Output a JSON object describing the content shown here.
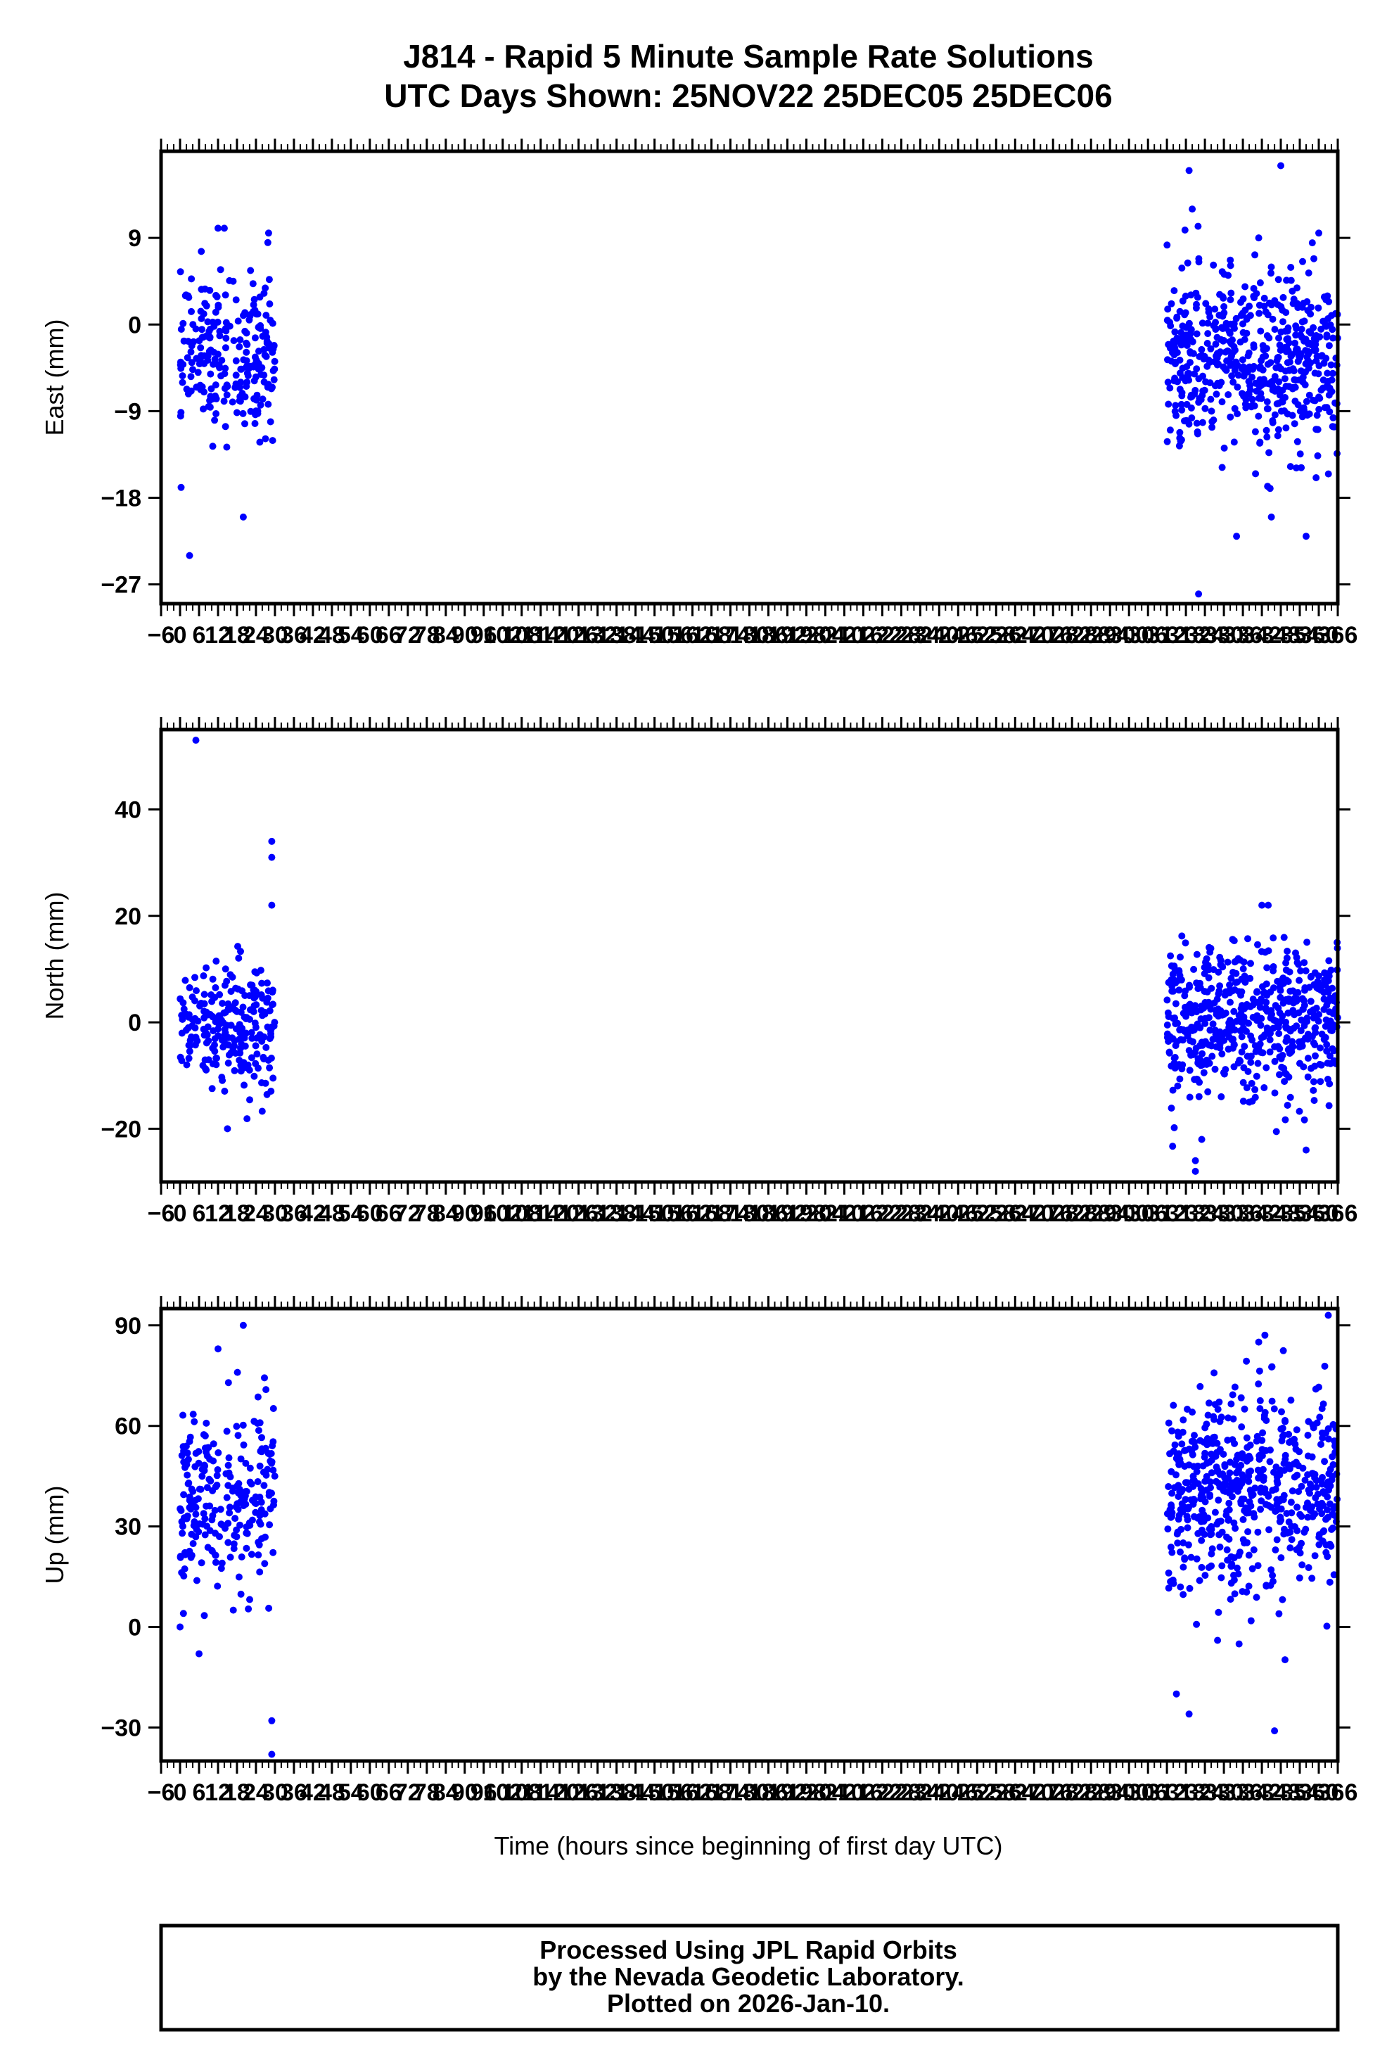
{
  "title": {
    "line1": "J814 - Rapid 5 Minute Sample Rate Solutions",
    "line2": "UTC Days Shown:  25NOV22 25DEC05 25DEC06"
  },
  "xlabel": "Time (hours since beginning of first day UTC)",
  "footer": {
    "line1": "Processed Using JPL Rapid Orbits",
    "line2": "by the Nevada Geodetic Laboratory.",
    "line3": "Plotted on 2026-Jan-10."
  },
  "colors": {
    "points": "#0000ff",
    "frame": "#000000"
  },
  "chart_data": [
    {
      "type": "scatter",
      "ylabel": "East (mm)",
      "xlim": [
        -6,
        366
      ],
      "ylim": [
        -29,
        18
      ],
      "yticks": [
        9,
        0,
        -9,
        -18,
        -27
      ],
      "ytick_labels": [
        "9",
        "0",
        "−9",
        "−18",
        "−27"
      ],
      "xtick_labels": [
        "−6",
        "0",
        "6",
        "12",
        "18",
        "24",
        "30",
        "36",
        "42",
        "48",
        "54",
        "60",
        "66",
        "72",
        "78",
        "84",
        "90",
        "96",
        "102",
        "108",
        "114",
        "120",
        "126",
        "132",
        "138",
        "144",
        "150",
        "156",
        "162",
        "168",
        "174",
        "180",
        "186",
        "192",
        "198",
        "204",
        "210",
        "216",
        "222",
        "228",
        "234",
        "240",
        "246",
        "252",
        "258",
        "264",
        "270",
        "276",
        "282",
        "288",
        "294",
        "300",
        "306",
        "312",
        "318",
        "324",
        "330",
        "336",
        "342",
        "348",
        "354",
        "360",
        "366"
      ],
      "grid": false,
      "series": [
        {
          "color": "#0000ff",
          "clusters": [
            {
              "x_range": [
                0,
                30
              ],
              "center": -3,
              "spread": 4,
              "n": 240
            },
            {
              "x_range": [
                312,
                366
              ],
              "center": -4,
              "spread": 4.5,
              "n": 560
            }
          ],
          "outliers": [
            [
              3,
              -24
            ],
            [
              12,
              10
            ],
            [
              14,
              10
            ],
            [
              20,
              -20
            ],
            [
              28,
              9.5
            ],
            [
              319,
              16
            ],
            [
              320,
              12
            ],
            [
              334,
              -22
            ],
            [
              341,
              9
            ],
            [
              322,
              -28
            ],
            [
              356,
              -22
            ],
            [
              348,
              16.5
            ],
            [
              360,
              9.5
            ],
            [
              345,
              -20
            ]
          ]
        }
      ]
    },
    {
      "type": "scatter",
      "ylabel": "North (mm)",
      "xlim": [
        -6,
        366
      ],
      "ylim": [
        -30,
        55
      ],
      "yticks": [
        40,
        20,
        0,
        -20
      ],
      "ytick_labels": [
        "40",
        "20",
        "0",
        "−20"
      ],
      "xtick_labels": [
        "−6",
        "0",
        "6",
        "12",
        "18",
        "24",
        "30",
        "36",
        "42",
        "48",
        "54",
        "60",
        "66",
        "72",
        "78",
        "84",
        "90",
        "96",
        "102",
        "108",
        "114",
        "120",
        "126",
        "132",
        "138",
        "144",
        "150",
        "156",
        "162",
        "168",
        "174",
        "180",
        "186",
        "192",
        "198",
        "204",
        "210",
        "216",
        "222",
        "228",
        "234",
        "240",
        "246",
        "252",
        "258",
        "264",
        "270",
        "276",
        "282",
        "288",
        "294",
        "300",
        "306",
        "312",
        "318",
        "324",
        "330",
        "336",
        "342",
        "348",
        "354",
        "360",
        "366"
      ],
      "grid": false,
      "series": [
        {
          "color": "#0000ff",
          "clusters": [
            {
              "x_range": [
                0,
                30
              ],
              "center": -1,
              "spread": 6,
              "n": 240
            },
            {
              "x_range": [
                312,
                366
              ],
              "center": 0,
              "spread": 7,
              "n": 560
            }
          ],
          "outliers": [
            [
              5,
              53
            ],
            [
              29,
              34
            ],
            [
              29,
              31
            ],
            [
              29,
              22
            ],
            [
              15,
              -20
            ],
            [
              321,
              -28
            ],
            [
              321,
              -26
            ],
            [
              323,
              -22
            ],
            [
              342,
              22
            ],
            [
              344,
              22
            ],
            [
              356,
              -24
            ]
          ]
        }
      ]
    },
    {
      "type": "scatter",
      "ylabel": "Up (mm)",
      "xlim": [
        -6,
        366
      ],
      "ylim": [
        -40,
        95
      ],
      "yticks": [
        90,
        60,
        30,
        0,
        -30
      ],
      "ytick_labels": [
        "90",
        "60",
        "30",
        "0",
        "−30"
      ],
      "xtick_labels": [
        "−6",
        "0",
        "6",
        "12",
        "18",
        "24",
        "30",
        "36",
        "42",
        "48",
        "54",
        "60",
        "66",
        "72",
        "78",
        "84",
        "90",
        "96",
        "102",
        "108",
        "114",
        "120",
        "126",
        "132",
        "138",
        "144",
        "150",
        "156",
        "162",
        "168",
        "174",
        "180",
        "186",
        "192",
        "198",
        "204",
        "210",
        "216",
        "222",
        "228",
        "234",
        "240",
        "246",
        "252",
        "258",
        "264",
        "270",
        "276",
        "282",
        "288",
        "294",
        "300",
        "306",
        "312",
        "318",
        "324",
        "330",
        "336",
        "342",
        "348",
        "354",
        "360",
        "366"
      ],
      "grid": false,
      "series": [
        {
          "color": "#0000ff",
          "clusters": [
            {
              "x_range": [
                0,
                30
              ],
              "center": 38,
              "spread": 14,
              "n": 240
            },
            {
              "x_range": [
                312,
                366
              ],
              "center": 40,
              "spread": 15,
              "n": 560
            }
          ],
          "outliers": [
            [
              12,
              83
            ],
            [
              20,
              90
            ],
            [
              29,
              -28
            ],
            [
              29,
              -38
            ],
            [
              0,
              0
            ],
            [
              6,
              -8
            ],
            [
              315,
              -20
            ],
            [
              319,
              -26
            ],
            [
              341,
              85
            ],
            [
              346,
              -31
            ],
            [
              363,
              93
            ],
            [
              328,
              -4
            ]
          ]
        }
      ]
    }
  ]
}
